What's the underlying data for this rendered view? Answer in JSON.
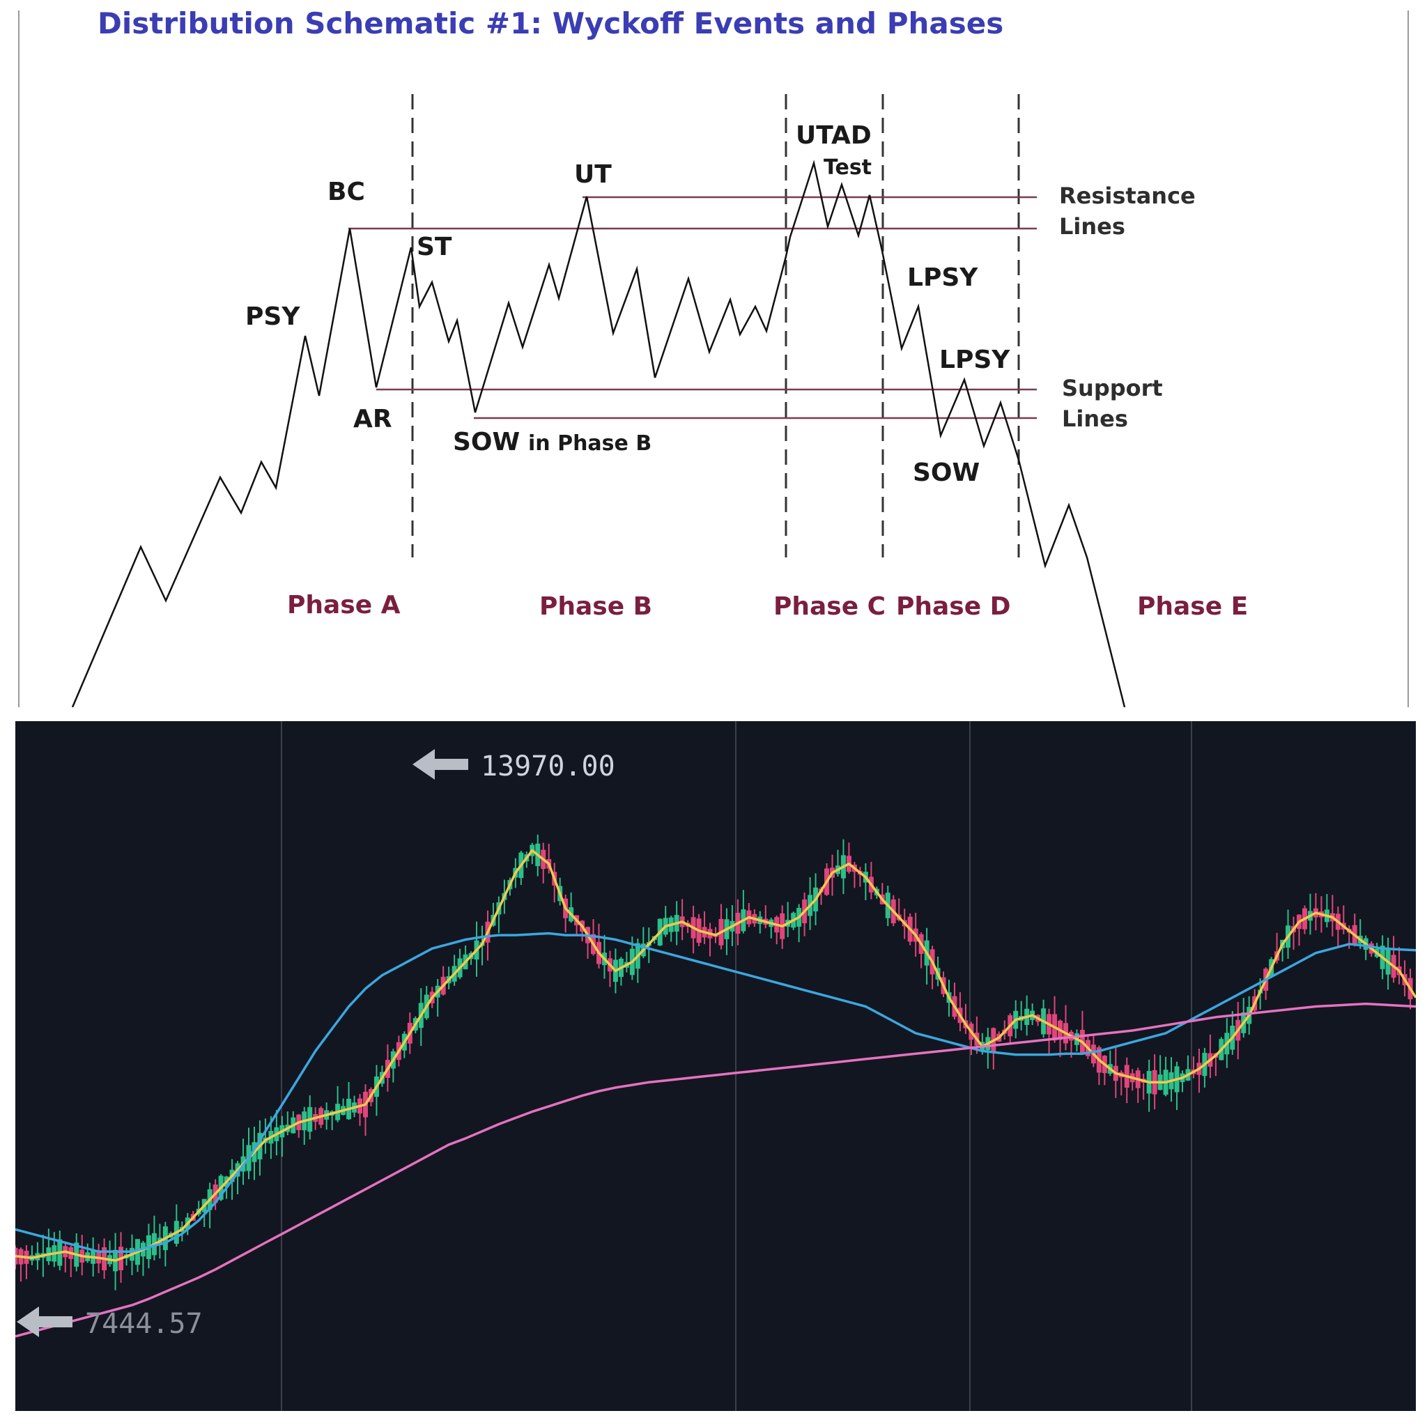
{
  "schematic": {
    "title": "Distribution Schematic #1: Wyckoff Events and Phases",
    "events": {
      "psy": "PSY",
      "bc": "BC",
      "ar": "AR",
      "st": "ST",
      "ut": "UT",
      "sow_b_main": "SOW",
      "sow_b_sub": "in Phase B",
      "utad": "UTAD",
      "test": "Test",
      "lpsy1": "LPSY",
      "lpsy2": "LPSY",
      "sow": "SOW"
    },
    "phases": [
      "Phase A",
      "Phase B",
      "Phase C",
      "Phase D",
      "Phase E"
    ],
    "resistance_label": [
      "Resistance",
      "Lines"
    ],
    "support_label": [
      "Support",
      "Lines"
    ],
    "colors": {
      "title": "#3a3db3",
      "phase": "#7a1f3d",
      "level_line": "#7b3a52",
      "price_path": "#111111"
    }
  },
  "market": {
    "high_label": "13970.00",
    "low_label": "7444.57",
    "arrow_icon": "left-arrow-icon",
    "colors": {
      "background": "#121620",
      "up": "#2bbf8a",
      "down": "#e0457b",
      "ma_fast": "#f2c94c",
      "ma_mid": "#3ba7e0",
      "ma_slow": "#e572c0",
      "grid": "#3a3f4a"
    }
  },
  "chart_data": {
    "type": "candlestick",
    "title": "",
    "ylim": [
      7444.57,
      13970.0
    ],
    "annotations": [
      "13970.00",
      "7444.57"
    ],
    "series": [
      {
        "values": [
          8400,
          8380,
          8420,
          8450,
          8400,
          8380,
          8350,
          8420,
          8500,
          8600,
          8700,
          8900,
          9100,
          9300,
          9500,
          9700,
          9800,
          9900,
          9950,
          10000,
          10050,
          10100,
          10400,
          10700,
          11000,
          11300,
          11500,
          11700,
          11900,
          12300,
          12700,
          12950,
          12800,
          12300,
          12100,
          11800,
          11600,
          11700,
          11900,
          12100,
          12150,
          12050,
          12000,
          12100,
          12200,
          12150,
          12100,
          12200,
          12400,
          12700,
          12800,
          12650,
          12400,
          12200,
          12000,
          11700,
          11300,
          11000,
          10750,
          10850,
          11050,
          11100,
          11000,
          10900,
          10800,
          10600,
          10450,
          10400,
          10350,
          10350,
          10400,
          10500,
          10650,
          10850,
          11100,
          11500,
          11900,
          12150,
          12250,
          12200,
          12050,
          11900,
          11750,
          11600,
          11300
        ]
      },
      {
        "values": [
          8700,
          8650,
          8600,
          8550,
          8500,
          8450,
          8450,
          8450,
          8500,
          8550,
          8650,
          8800,
          9000,
          9250,
          9500,
          9800,
          10100,
          10400,
          10700,
          10950,
          11200,
          11400,
          11550,
          11650,
          11750,
          11850,
          11900,
          11950,
          11980,
          12000,
          12000,
          12010,
          12020,
          12000,
          12000,
          11980,
          11950,
          11900,
          11850,
          11800,
          11750,
          11700,
          11650,
          11600,
          11550,
          11500,
          11450,
          11400,
          11350,
          11300,
          11250,
          11200,
          11100,
          11000,
          10900,
          10850,
          10800,
          10750,
          10700,
          10680,
          10660,
          10660,
          10660,
          10670,
          10670,
          10700,
          10750,
          10800,
          10850,
          10900,
          11000,
          11100,
          11200,
          11300,
          11400,
          11500,
          11600,
          11700,
          11800,
          11850,
          11900,
          11880,
          11850,
          11840,
          11830
        ]
      },
      {
        "values": [
          7500,
          7550,
          7600,
          7650,
          7700,
          7750,
          7800,
          7850,
          7920,
          8000,
          8080,
          8160,
          8250,
          8350,
          8450,
          8550,
          8650,
          8750,
          8850,
          8950,
          9050,
          9150,
          9250,
          9350,
          9450,
          9550,
          9650,
          9720,
          9800,
          9880,
          9950,
          10020,
          10080,
          10140,
          10200,
          10250,
          10290,
          10320,
          10350,
          10370,
          10390,
          10410,
          10430,
          10450,
          10470,
          10490,
          10510,
          10530,
          10550,
          10570,
          10590,
          10610,
          10630,
          10650,
          10670,
          10690,
          10710,
          10730,
          10750,
          10770,
          10790,
          10810,
          10830,
          10850,
          10870,
          10890,
          10910,
          10930,
          10960,
          10990,
          11020,
          11050,
          11080,
          11100,
          11120,
          11140,
          11160,
          11180,
          11200,
          11210,
          11220,
          11230,
          11220,
          11210,
          11200
        ]
      }
    ]
  }
}
